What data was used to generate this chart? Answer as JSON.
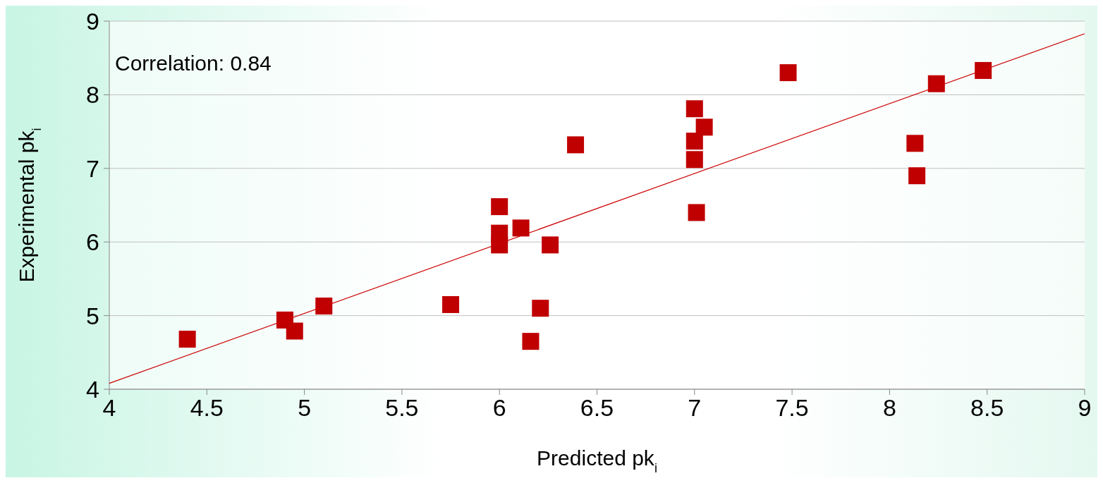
{
  "chart_data": {
    "type": "scatter",
    "xlabel": "Predicted pk$_{i}$",
    "ylabel": "Experimental pk$_{i}$",
    "annotations": [
      "Correlation: 0.84"
    ],
    "xlim": [
      4,
      9
    ],
    "ylim": [
      4,
      9
    ],
    "xticks": [
      4,
      4.5,
      5,
      5.5,
      6,
      6.5,
      7,
      7.5,
      8,
      8.5,
      9
    ],
    "yticks": [
      4,
      5,
      6,
      7,
      8,
      9
    ],
    "grid": "y",
    "marker": "square",
    "series": [
      {
        "color": "#c00000",
        "x": [
          4.4,
          4.9,
          4.95,
          5.1,
          5.75,
          6.0,
          6.0,
          6.0,
          6.11,
          6.26,
          6.21,
          6.16,
          6.39,
          7.0,
          7.0,
          7.0,
          7.05,
          7.01,
          7.48,
          8.13,
          8.14,
          8.24,
          8.48
        ],
        "values": [
          4.68,
          4.94,
          4.79,
          5.13,
          5.15,
          6.48,
          6.12,
          5.96,
          6.19,
          5.96,
          5.1,
          4.65,
          7.32,
          7.81,
          7.37,
          7.12,
          7.56,
          6.4,
          8.3,
          7.34,
          6.9,
          8.15,
          8.33
        ]
      },
      {
        "type": "line",
        "color": "#cc0000",
        "marker": "none",
        "x": [
          4,
          9
        ],
        "values": [
          4.08,
          8.83
        ]
      }
    ]
  }
}
